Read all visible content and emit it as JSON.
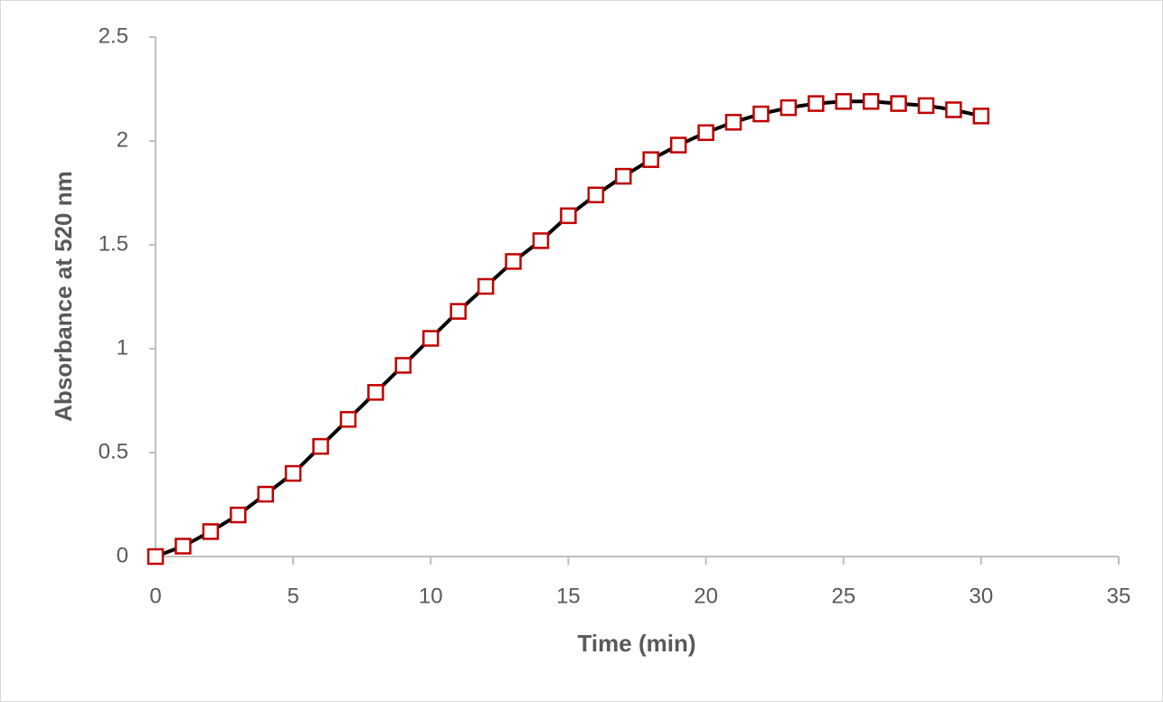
{
  "chart_data": {
    "type": "scatter-line",
    "x_label": "Time (min)",
    "y_label": "Absorbance at 520 nm",
    "x": [
      0,
      1,
      2,
      3,
      4,
      5,
      6,
      7,
      8,
      9,
      10,
      11,
      12,
      13,
      14,
      15,
      16,
      17,
      18,
      19,
      20,
      21,
      22,
      23,
      24,
      25,
      26,
      27,
      28,
      29,
      30
    ],
    "values": [
      0,
      0.05,
      0.12,
      0.2,
      0.3,
      0.4,
      0.53,
      0.66,
      0.79,
      0.92,
      1.05,
      1.18,
      1.3,
      1.42,
      1.52,
      1.64,
      1.74,
      1.83,
      1.91,
      1.98,
      2.04,
      2.09,
      2.13,
      2.16,
      2.18,
      2.19,
      2.19,
      2.18,
      2.17,
      2.15,
      2.12
    ],
    "color": "#c00000",
    "line_color": "#000000",
    "xlim": [
      0,
      35
    ],
    "xticks": [
      0,
      5,
      10,
      15,
      20,
      25,
      30,
      35
    ],
    "ylim": [
      0,
      2.5
    ],
    "yticks": [
      0,
      0.5,
      1,
      1.5,
      2,
      2.5
    ],
    "grid": false
  }
}
